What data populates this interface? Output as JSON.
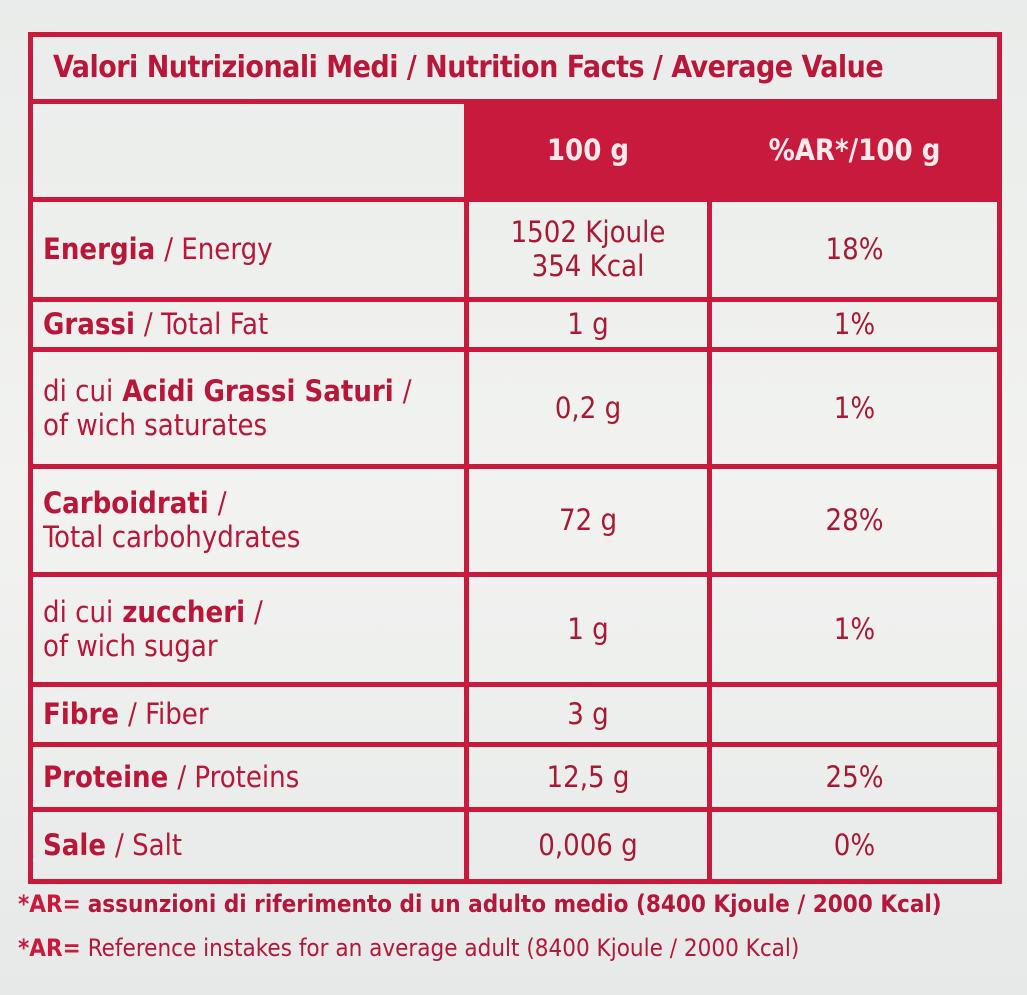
{
  "title": "Valori Nutrizionali Medi / Nutrition Facts / Average Value",
  "header": [
    "100 g",
    "%AR*/100 g"
  ],
  "rows": [
    {
      "label": [
        [
          {
            "text": "Energia",
            "bold": true
          },
          {
            "text": "/ Energy"
          }
        ]
      ],
      "amount": [
        "1502 Kjoule",
        "354 Kcal"
      ],
      "ar": "18%"
    },
    {
      "label": [
        [
          {
            "text": "Grassi",
            "bold": true
          },
          {
            "text": "/ Total Fat"
          }
        ]
      ],
      "amount": [
        "1 g"
      ],
      "ar": "1%"
    },
    {
      "label": [
        [
          {
            "text": "di cui"
          },
          {
            "text": "Acidi Grassi Saturi",
            "bold": true
          },
          {
            "text": "/"
          }
        ],
        [
          {
            "text": "of wich saturates"
          }
        ]
      ],
      "amount": [
        "0,2 g"
      ],
      "ar": "1%"
    },
    {
      "label": [
        [
          {
            "text": "Carboidrati",
            "bold": true
          },
          {
            "text": "/"
          }
        ],
        [
          {
            "text": "Total carbohydrates"
          }
        ]
      ],
      "amount": [
        "72 g"
      ],
      "ar": "28%"
    },
    {
      "label": [
        [
          {
            "text": "di cui"
          },
          {
            "text": "zuccheri",
            "bold": true
          },
          {
            "text": "/"
          }
        ],
        [
          {
            "text": "of wich sugar"
          }
        ]
      ],
      "amount": [
        "1 g"
      ],
      "ar": "1%"
    },
    {
      "label": [
        [
          {
            "text": "Fibre",
            "bold": true
          },
          {
            "text": "/ Fiber"
          }
        ]
      ],
      "amount": [
        "3 g"
      ],
      "ar": null
    },
    {
      "label": [
        [
          {
            "text": "Proteine",
            "bold": true
          },
          {
            "text": "/ Proteins"
          }
        ]
      ],
      "amount": [
        "12,5 g"
      ],
      "ar": "25%"
    },
    {
      "label": [
        [
          {
            "text": "Sale",
            "bold": true
          },
          {
            "text": "/ Salt"
          }
        ]
      ],
      "amount": [
        "0,006 g"
      ],
      "ar": "0%"
    }
  ],
  "footnotes": [
    {
      "mark": "*AR=",
      "text": "assunzioni di riferimento di un adulto medio (8400 Kjoule / 2000 Kcal)",
      "bold": true
    },
    {
      "mark": "*AR=",
      "text": "Reference instakes for an average adult (8400 Kjoule / 2000 Kcal)"
    }
  ]
}
